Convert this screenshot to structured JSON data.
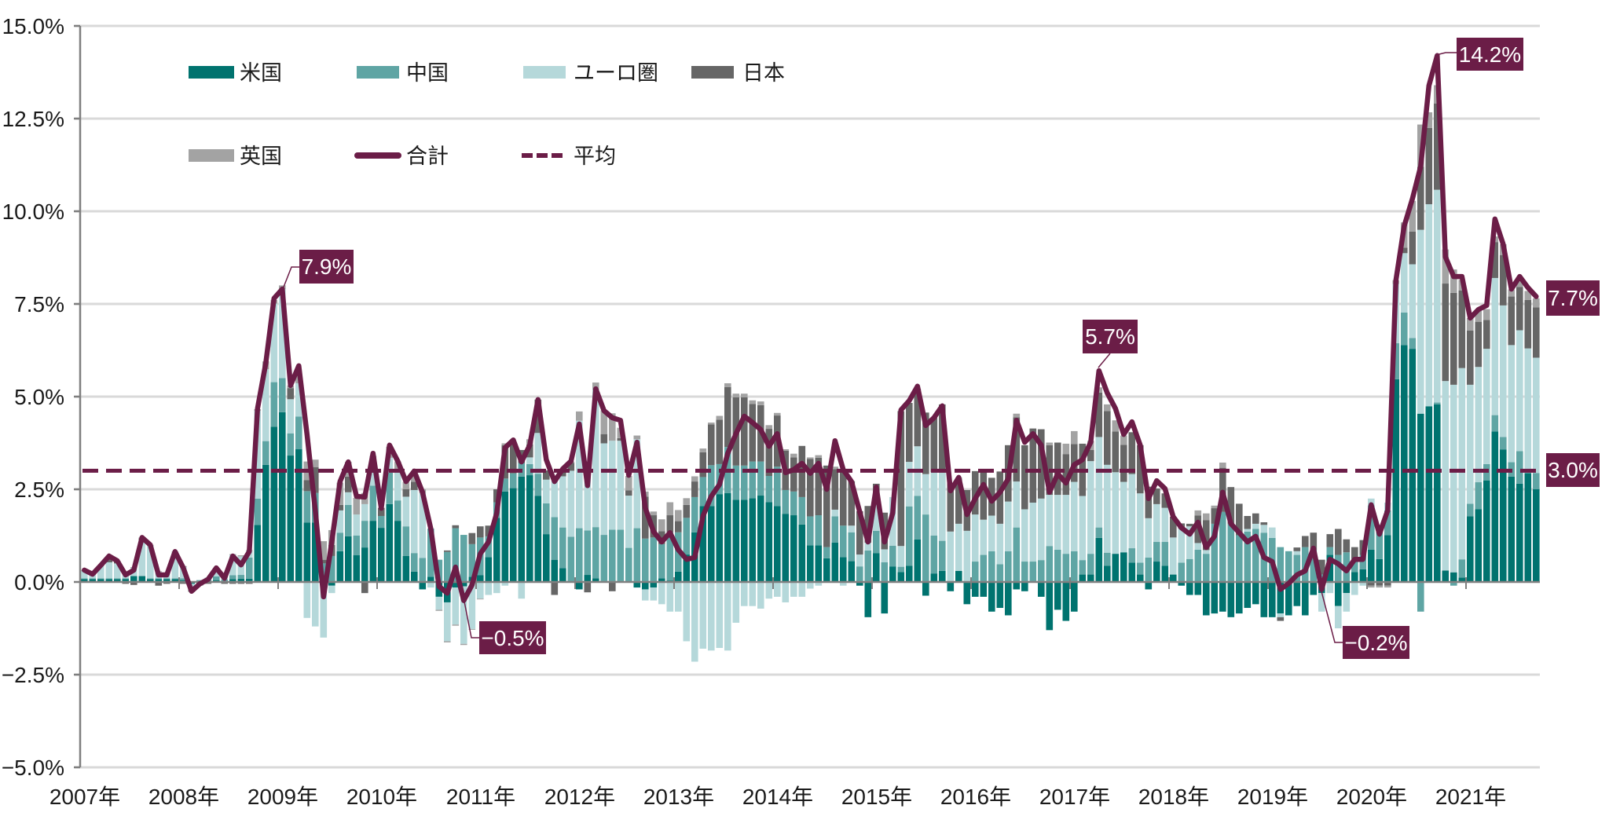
{
  "chart_data": {
    "type": "bar",
    "subtype": "stacked-bar-with-line",
    "title": "",
    "xlabel": "",
    "ylabel": "",
    "period": {
      "start": "2007-01",
      "end": "2021-09",
      "frequency": "monthly"
    },
    "ylim": [
      -5.0,
      15.0
    ],
    "ytick_step": 2.5,
    "y_ticks": [
      "15.0%",
      "12.5%",
      "10.0%",
      "7.5%",
      "5.0%",
      "2.5%",
      "0.0%",
      "−2.5%",
      "−5.0%"
    ],
    "y_tick_values": [
      15.0,
      12.5,
      10.0,
      7.5,
      5.0,
      2.5,
      0.0,
      -2.5,
      -5.0
    ],
    "x_ticks": [
      "2007年",
      "2008年",
      "2009年",
      "2010年",
      "2011年",
      "2012年",
      "2013年",
      "2014年",
      "2015年",
      "2016年",
      "2017年",
      "2018年",
      "2019年",
      "2020年",
      "2021年"
    ],
    "grid": true,
    "legend_position": "top-left",
    "legend": [
      {
        "key": "us",
        "label": "米国",
        "kind": "bar",
        "color": "#00736f"
      },
      {
        "key": "cn",
        "label": "中国",
        "kind": "bar",
        "color": "#5fa5a4"
      },
      {
        "key": "eu",
        "label": "ユーロ圏",
        "kind": "bar",
        "color": "#b5d8da"
      },
      {
        "key": "jp",
        "label": "日本",
        "kind": "bar",
        "color": "#666666"
      },
      {
        "key": "uk",
        "label": "英国",
        "kind": "bar",
        "color": "#a3a3a3"
      },
      {
        "key": "total",
        "label": "合計",
        "kind": "line",
        "color": "#6b1d47"
      },
      {
        "key": "average",
        "label": "平均",
        "kind": "dashed-line",
        "color": "#6b1d47"
      }
    ],
    "series": [
      {
        "key": "us",
        "name": "米国",
        "values": [
          0.08,
          0.08,
          0.08,
          0.08,
          0.08,
          0.08,
          0.15,
          0.15,
          0.08,
          0.08,
          0.08,
          0.08,
          0.05,
          -0.05,
          0,
          0.02,
          0.05,
          0.02,
          0.08,
          0.09,
          0.09,
          1.54,
          3.16,
          4.19,
          4.58,
          3.41,
          3.58,
          1.6,
          1.6,
          0,
          -0.1,
          0.83,
          1.23,
          0.72,
          0.93,
          1.65,
          1.46,
          2.1,
          1.65,
          0.7,
          0.28,
          -0.2,
          0.14,
          -0.4,
          -0.55,
          -0.15,
          -0.12,
          0.14,
          0.18,
          0.67,
          1.73,
          2.44,
          2.53,
          2.84,
          2.88,
          2.32,
          1.29,
          0.6,
          0.37,
          0,
          -0.2,
          0.19,
          0.1,
          0,
          0,
          0,
          0,
          -0.15,
          -0.2,
          -0.15,
          0.1,
          0.04,
          0.28,
          0.74,
          1.34,
          2.05,
          2.05,
          2.37,
          2.4,
          2.22,
          2.22,
          2.26,
          2.33,
          2.15,
          2.05,
          1.84,
          1.8,
          1.55,
          0.99,
          0.99,
          0.64,
          1.06,
          0.67,
          0.56,
          -0.1,
          -0.95,
          0.78,
          -0.85,
          0.42,
          0.27,
          0.44,
          1.15,
          -0.37,
          0.23,
          0.3,
          -0.25,
          0.3,
          -0.6,
          -0.4,
          -0.4,
          -0.8,
          -0.7,
          -0.9,
          -0.2,
          -0.25,
          0,
          -0.4,
          -1.3,
          -0.75,
          -1.05,
          -0.8,
          0.2,
          0.2,
          1.19,
          0.44,
          0.76,
          0.8,
          0.52,
          0.2,
          -0.2,
          0.55,
          0.44,
          0.2,
          -0.1,
          -0.35,
          -0.35,
          -0.9,
          -0.85,
          -0.8,
          -0.95,
          -0.85,
          -0.7,
          -0.6,
          -0.95,
          -0.95,
          -0.85,
          -0.9,
          -0.65,
          -0.9,
          -0.35,
          -0.3,
          0.73,
          -0.65,
          -0.3,
          0.27,
          0.34,
          0.87,
          0.62,
          1.26,
          5.47,
          6.39,
          6.29,
          4.54,
          4.74,
          4.79,
          0.31,
          0.26,
          0.12,
          1.77,
          1.96,
          2.74,
          4.06,
          3.57,
          2.84,
          2.65,
          2.94,
          2.5
        ]
      },
      {
        "key": "cn",
        "name": "中国",
        "values": [
          0.02,
          0.02,
          0.02,
          0.02,
          0.02,
          0.02,
          0.02,
          0.02,
          0.02,
          0.02,
          0.02,
          0.02,
          0.05,
          0.02,
          0.05,
          0.05,
          0.1,
          0.05,
          0.1,
          0.1,
          0.57,
          0.71,
          0.64,
          1.2,
          0.92,
          0.6,
          0.88,
          0.85,
          0.8,
          0.5,
          0.7,
          0.5,
          0.85,
          0.53,
          0.72,
          0.95,
          0.32,
          0.85,
          0.55,
          0.8,
          0.5,
          0.65,
          1.3,
          0.6,
          0.81,
          1.45,
          1.27,
          0.88,
          1.02,
          0.56,
          0.42,
          0.35,
          0.4,
          0.37,
          0.3,
          0.6,
          0.83,
          1.15,
          1.1,
          1.22,
          1.45,
          1.2,
          1.38,
          1.27,
          1.41,
          1.41,
          0.92,
          1.45,
          1.17,
          1.2,
          0.92,
          1.3,
          1.06,
          0.99,
          0.95,
          0.78,
          1.1,
          0.81,
          1.24,
          0.92,
          0.92,
          0.99,
          0.92,
          0.71,
          1.06,
          0.64,
          0.64,
          0.74,
          0.78,
          0.81,
          0.3,
          0.71,
          0.85,
          0.78,
          0.42,
          0.85,
          0.6,
          0.53,
          0.56,
          0.14,
          1.6,
          1.17,
          1.82,
          1.02,
          0.81,
          0,
          0,
          0,
          0.55,
          0.73,
          0.83,
          0.48,
          0.83,
          1.47,
          0.55,
          0.55,
          0.59,
          0.97,
          0.87,
          0.76,
          0.83,
          0.39,
          0.56,
          0.28,
          0.35,
          0,
          0,
          0.39,
          0.32,
          0.66,
          0.53,
          0.64,
          0,
          0.52,
          0.62,
          0.87,
          0.76,
          1.57,
          1.89,
          1.57,
          1.26,
          1.36,
          1.43,
          1.33,
          1.19,
          0.94,
          0.83,
          0.73,
          0.94,
          0.87,
          0.2,
          0.21,
          0.73,
          0.8,
          0.35,
          0.39,
          1.2,
          0.92,
          0.67,
          0.97,
          0.88,
          0.29,
          -0.8,
          0,
          0.05,
          0,
          -0.1,
          0.49,
          0.34,
          0.73,
          0.44,
          0.44,
          0.34,
          0.39,
          0.88,
          0,
          0.44
        ]
      },
      {
        "key": "eu",
        "name": "ユーロ圏",
        "values": [
          0.2,
          0.09,
          0.33,
          0.43,
          0.4,
          0.12,
          0.21,
          0.96,
          0.88,
          0.17,
          0.12,
          0.7,
          0.3,
          -0.1,
          0,
          0.05,
          0.23,
          0.08,
          0.55,
          0.5,
          0.18,
          2.37,
          1.94,
          2.12,
          2.4,
          0.92,
          0.9,
          -0.97,
          -1.2,
          -1.5,
          -0.2,
          0.6,
          0.34,
          0.57,
          0.45,
          0.7,
          0,
          0.4,
          0.85,
          0.8,
          1.7,
          1.75,
          -0.15,
          -0.35,
          -1.05,
          -1.0,
          -1.55,
          -1.27,
          -0.45,
          -0.35,
          -0.3,
          -0.1,
          0,
          -0.45,
          0.18,
          1.1,
          0.64,
          0.97,
          1.38,
          1.78,
          2.9,
          1.45,
          3.7,
          2.47,
          2.4,
          2.4,
          1.41,
          2.4,
          -0.3,
          -0.35,
          -0.6,
          -0.8,
          -0.8,
          -1.6,
          -2.15,
          -1.8,
          -1.85,
          -1.78,
          -1.85,
          -1.1,
          -0.65,
          -0.65,
          -0.72,
          -0.45,
          -0.4,
          -0.55,
          -0.4,
          -0.4,
          -0.18,
          -0.1,
          0,
          0.18,
          -0.1,
          0.18,
          0.32,
          0.21,
          0.85,
          0.35,
          1.31,
          0.56,
          1.2,
          1.34,
          1.09,
          1.71,
          1.84,
          1.36,
          1.27,
          1.38,
          1.27,
          0.95,
          0.96,
          1.09,
          1.34,
          1.24,
          1.41,
          1.59,
          1.66,
          1.38,
          1.48,
          1.59,
          1.87,
          1.73,
          2.5,
          2.44,
          2.37,
          2.2,
          1.9,
          2.0,
          1.87,
          1.06,
          1.02,
          0.92,
          1.0,
          0.92,
          0.88,
          0.18,
          0.1,
          0,
          0,
          0,
          0,
          0.07,
          0.14,
          0.21,
          0.28,
          -0.1,
          0,
          0.1,
          0,
          0,
          -0.5,
          -0.3,
          -0.6,
          -0.5,
          -0.35,
          -0.1,
          0.18,
          0,
          0.21,
          1.6,
          1.6,
          1.99,
          4.96,
          5.45,
          5.74,
          5.11,
          5.06,
          5.16,
          3.21,
          3.11,
          3.11,
          3.7,
          3.55,
          3.16,
          3.26,
          3.36,
          3.11
        ]
      },
      {
        "key": "jp",
        "name": "日本",
        "values": [
          0,
          0,
          0,
          0.15,
          0.05,
          -0.05,
          -0.08,
          0.05,
          0,
          -0.1,
          -0.05,
          0,
          -0.05,
          -0.1,
          -0.08,
          -0.05,
          0,
          -0.05,
          -0.05,
          -0.05,
          -0.05,
          0,
          0,
          0,
          0,
          0.3,
          0,
          0.3,
          0.7,
          0.1,
          0.3,
          0.15,
          0.42,
          0,
          -0.3,
          0,
          0.22,
          0,
          0,
          0.2,
          0.22,
          0,
          0,
          0,
          0.04,
          0.08,
          0,
          0.3,
          0.3,
          0.29,
          0.35,
          0.9,
          0.78,
          0.35,
          0.35,
          0.9,
          0.25,
          -0.35,
          0.14,
          0.21,
          0,
          -0.28,
          0,
          0.25,
          -0.25,
          0.07,
          0.14,
          0,
          1.13,
          0.6,
          0.35,
          0.46,
          0.3,
          0.35,
          0.42,
          0.67,
          1.1,
          1.2,
          1.62,
          1.84,
          1.84,
          1.55,
          1.52,
          1.27,
          1.38,
          1.06,
          0.92,
          1.38,
          1.55,
          1.55,
          2.2,
          1.09,
          1.52,
          1.2,
          1.17,
          0.99,
          0.42,
          0.99,
          0,
          3.64,
          1.59,
          1.55,
          1.66,
          1.48,
          1.84,
          1.3,
          1.2,
          1.1,
          1.17,
          1.34,
          1.02,
          1.41,
          1.52,
          1.73,
          1.73,
          2.0,
          1.87,
          1.34,
          1.41,
          1.1,
          1.02,
          1.41,
          0.3,
          1.2,
          1.45,
          1.1,
          1.0,
          1.13,
          1.3,
          0.85,
          0.42,
          0.39,
          0.56,
          0.14,
          0.07,
          0.74,
          0.81,
          0.42,
          1.19,
          0.99,
          0.85,
          0.35,
          0.28,
          0.07,
          0,
          -0.1,
          0,
          0.1,
          0.3,
          0.46,
          0.4,
          0.35,
          0.7,
          0.35,
          0.32,
          0.4,
          -0.1,
          -0.1,
          -0.1,
          0,
          0.15,
          0.88,
          1.7,
          2.06,
          2.33,
          2.63,
          2.48,
          2.09,
          1.46,
          1.22,
          0.78,
          0.97,
          1.36,
          1.31,
          1.17,
          1.31,
          1.36
        ]
      },
      {
        "key": "uk",
        "name": "英国",
        "values": [
          0.02,
          0.02,
          0.02,
          0.02,
          0.02,
          0.02,
          0.02,
          0.02,
          0.02,
          0.02,
          0.02,
          0.02,
          0.03,
          -0.02,
          -0.02,
          0,
          0,
          0,
          0.02,
          0.03,
          0.02,
          0.04,
          0.21,
          0.1,
          0.1,
          0.07,
          0.2,
          0.5,
          0.2,
          0.5,
          0.4,
          0.6,
          0.4,
          0.45,
          0.3,
          0.1,
          0,
          0.3,
          0.2,
          0.2,
          0.3,
          0.1,
          0,
          -0.03,
          -0.03,
          -0.03,
          -0.03,
          -0.02,
          -0.02,
          0,
          0,
          0.05,
          0.05,
          0,
          0.14,
          0,
          0,
          0,
          0,
          0.04,
          0.25,
          0,
          0.2,
          0.64,
          0.74,
          0.28,
          0.39,
          0.1,
          0.14,
          0.1,
          0.32,
          0.35,
          0.3,
          0.18,
          0.14,
          0.1,
          0.05,
          0.1,
          0.1,
          0.1,
          0.1,
          0.1,
          0.1,
          0.1,
          0.07,
          0.04,
          0.1,
          0,
          0.04,
          0.07,
          0,
          0.07,
          0,
          0,
          0,
          0,
          0,
          0,
          0,
          0,
          0,
          0,
          0,
          0,
          0,
          0,
          0.05,
          0,
          0,
          0,
          0,
          0,
          0,
          0.1,
          0,
          0,
          0,
          0.07,
          0,
          0.28,
          0.35,
          0,
          0.25,
          0.14,
          0.18,
          0.3,
          0.25,
          0,
          0,
          0,
          0,
          0,
          0,
          0,
          0,
          0.14,
          0.18,
          0.07,
          0.14,
          0,
          0,
          0,
          0,
          0,
          0,
          0,
          0,
          0,
          0,
          0,
          0,
          0,
          0,
          0,
          0,
          0,
          -0.05,
          -0.05,
          -0.05,
          0.1,
          0.68,
          0.83,
          1.14,
          0.42,
          0.49,
          0.92,
          0.63,
          0.29,
          0.34,
          0.29,
          0.29,
          0.15,
          0.29,
          0.19,
          0.15,
          0.24,
          0.24
        ]
      },
      {
        "key": "total",
        "name": "合計",
        "values": [
          0.32,
          0.21,
          0.45,
          0.7,
          0.57,
          0.19,
          0.32,
          1.2,
          1.0,
          0.19,
          0.19,
          0.82,
          0.38,
          -0.25,
          -0.05,
          0.07,
          0.38,
          0.1,
          0.7,
          0.46,
          0.82,
          4.68,
          5.9,
          7.65,
          7.9,
          5.3,
          5.83,
          3.98,
          1.93,
          -0.4,
          1.08,
          2.71,
          3.24,
          2.31,
          2.29,
          3.47,
          1.99,
          3.69,
          3.26,
          2.71,
          2.99,
          2.42,
          1.44,
          -0.12,
          -0.3,
          0.4,
          -0.5,
          -0.08,
          0.76,
          1.08,
          1.86,
          3.62,
          3.83,
          3.24,
          3.69,
          4.92,
          3.3,
          2.71,
          3.05,
          3.26,
          4.26,
          2.6,
          5.21,
          4.62,
          4.43,
          4.36,
          2.88,
          3.77,
          2.0,
          1.36,
          1.08,
          1.33,
          0.87,
          0.61,
          0.66,
          1.78,
          2.31,
          2.63,
          3.47,
          4.0,
          4.47,
          4.3,
          4.11,
          3.66,
          4.0,
          2.95,
          3.03,
          3.2,
          2.93,
          3.2,
          2.5,
          3.81,
          3.03,
          2.71,
          1.89,
          1.08,
          2.56,
          1.08,
          1.86,
          4.64,
          4.89,
          5.28,
          4.22,
          4.43,
          4.75,
          2.46,
          2.82,
          1.82,
          2.25,
          2.63,
          2.18,
          2.42,
          2.78,
          4.36,
          3.77,
          4.0,
          3.69,
          2.42,
          2.92,
          2.67,
          3.16,
          3.3,
          3.77,
          5.7,
          5.1,
          4.68,
          3.98,
          4.32,
          3.69,
          2.25,
          2.73,
          2.52,
          1.76,
          1.46,
          1.29,
          1.61,
          0.93,
          1.23,
          2.42,
          1.57,
          1.33,
          1.08,
          1.23,
          0.66,
          0.55,
          -0.2,
          -0.04,
          0.19,
          0.3,
          0.91,
          -0.2,
          0.61,
          0.49,
          0.3,
          0.61,
          0.61,
          2.08,
          1.29,
          1.93,
          8.14,
          9.6,
          10.34,
          11.21,
          13.39,
          14.2,
          8.77,
          8.24,
          8.24,
          7.12,
          7.35,
          7.46,
          9.79,
          9.11,
          7.9,
          8.24,
          7.94,
          7.7
        ]
      }
    ],
    "average": 3.0,
    "annotations": [
      {
        "label": "7.9%",
        "date": "2009-01",
        "value": 7.9
      },
      {
        "label": "−0.5%",
        "date": "2010-11",
        "value": -0.5
      },
      {
        "label": "5.7%",
        "date": "2017-04",
        "value": 5.7
      },
      {
        "label": "14.2%",
        "date": "2020-09",
        "value": 14.2
      },
      {
        "label": "−0.2%",
        "date": "2019-07",
        "value": -0.2
      },
      {
        "label": "7.7%",
        "date": "2021-09",
        "value": 7.7
      },
      {
        "label": "3.0%",
        "date": "average",
        "value": 3.0
      }
    ]
  }
}
